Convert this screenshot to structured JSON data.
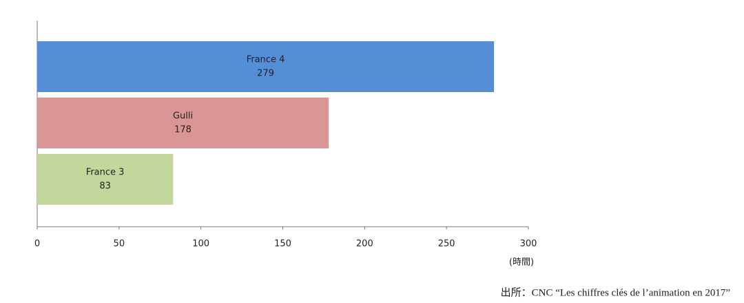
{
  "chart_data": {
    "type": "bar",
    "orientation": "horizontal",
    "categories": [
      "France 4",
      "Gulli",
      "France 3"
    ],
    "values": [
      279,
      178,
      83
    ],
    "colors": [
      "#558ed5",
      "#d99694",
      "#c3d69b"
    ],
    "xlim": [
      0,
      300
    ],
    "xticks": [
      0,
      50,
      100,
      150,
      200,
      250,
      300
    ],
    "x_label": "(時間)",
    "source": "出所：CNC “Les chiffres clés de l’animation en 2017”"
  }
}
